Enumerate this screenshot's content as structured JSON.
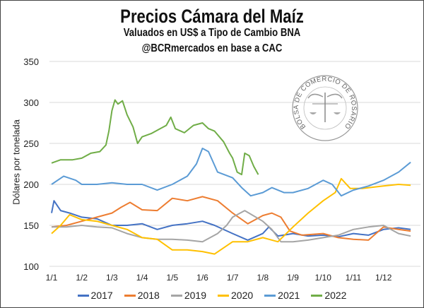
{
  "chart_data": {
    "type": "line",
    "title": "Precios Cámara del Maíz",
    "subtitle": "Valuados en US$ a Tipo de Cambio BNA",
    "source": "@BCRmercados en base a CAC",
    "logo_text": "BOLSA DE COMERCIO DE ROSARIO",
    "xlabel": "",
    "ylabel": "Dólares por tonelada",
    "ylim": [
      100,
      350
    ],
    "yticks": [
      "100",
      "150",
      "200",
      "250",
      "300",
      "350"
    ],
    "xticks": [
      "1/1",
      "1/2",
      "1/3",
      "1/4",
      "1/5",
      "1/6",
      "1/7",
      "1/8",
      "1/9",
      "1/10",
      "1/11",
      "1/12"
    ],
    "x_unit": "months since Jan 1",
    "grid": "horizontal",
    "legend_position": "bottom",
    "series": [
      {
        "name": "2017",
        "color": "#4472C4",
        "points": [
          [
            0,
            165
          ],
          [
            0.08,
            180
          ],
          [
            0.3,
            168
          ],
          [
            0.6,
            165
          ],
          [
            1,
            160
          ],
          [
            1.5,
            158
          ],
          [
            2,
            150
          ],
          [
            2.5,
            150
          ],
          [
            3,
            152
          ],
          [
            3.5,
            145
          ],
          [
            4,
            150
          ],
          [
            4.5,
            152
          ],
          [
            5,
            155
          ],
          [
            5.4,
            150
          ],
          [
            6,
            140
          ],
          [
            6.5,
            132
          ],
          [
            7,
            140
          ],
          [
            7.2,
            148
          ],
          [
            7.5,
            137
          ],
          [
            8,
            140
          ],
          [
            8.5,
            137
          ],
          [
            9,
            138
          ],
          [
            9.5,
            136
          ],
          [
            10,
            140
          ],
          [
            10.5,
            138
          ],
          [
            11,
            145
          ],
          [
            11.5,
            147
          ],
          [
            11.9,
            145
          ]
        ]
      },
      {
        "name": "2018",
        "color": "#ED7D31",
        "points": [
          [
            0,
            148
          ],
          [
            0.5,
            150
          ],
          [
            1,
            155
          ],
          [
            1.5,
            160
          ],
          [
            2,
            165
          ],
          [
            2.3,
            172
          ],
          [
            2.6,
            178
          ],
          [
            3,
            169
          ],
          [
            3.5,
            168
          ],
          [
            4,
            183
          ],
          [
            4.5,
            180
          ],
          [
            5,
            185
          ],
          [
            5.5,
            180
          ],
          [
            6,
            165
          ],
          [
            6.5,
            152
          ],
          [
            7,
            162
          ],
          [
            7.3,
            165
          ],
          [
            7.6,
            160
          ],
          [
            7.9,
            143
          ],
          [
            8.3,
            138
          ],
          [
            9,
            140
          ],
          [
            9.5,
            135
          ],
          [
            10,
            133
          ],
          [
            10.5,
            132
          ],
          [
            11,
            148
          ],
          [
            11.5,
            145
          ],
          [
            11.9,
            143
          ]
        ]
      },
      {
        "name": "2019",
        "color": "#A5A5A5",
        "points": [
          [
            0,
            148
          ],
          [
            0.5,
            148
          ],
          [
            1,
            150
          ],
          [
            1.5,
            148
          ],
          [
            2,
            147
          ],
          [
            2.5,
            140
          ],
          [
            3,
            135
          ],
          [
            3.5,
            133
          ],
          [
            4,
            133
          ],
          [
            4.5,
            132
          ],
          [
            5,
            130
          ],
          [
            5.5,
            140
          ],
          [
            5.8,
            150
          ],
          [
            6,
            160
          ],
          [
            6.4,
            168
          ],
          [
            7,
            155
          ],
          [
            7.3,
            145
          ],
          [
            7.6,
            130
          ],
          [
            8,
            130
          ],
          [
            8.5,
            132
          ],
          [
            9,
            135
          ],
          [
            9.5,
            138
          ],
          [
            10,
            145
          ],
          [
            10.5,
            148
          ],
          [
            11,
            150
          ],
          [
            11.5,
            140
          ],
          [
            11.9,
            137
          ]
        ]
      },
      {
        "name": "2020",
        "color": "#FFC000",
        "points": [
          [
            0,
            140
          ],
          [
            0.3,
            150
          ],
          [
            0.6,
            163
          ],
          [
            1,
            157
          ],
          [
            1.5,
            155
          ],
          [
            2,
            150
          ],
          [
            2.5,
            145
          ],
          [
            3,
            135
          ],
          [
            3.5,
            133
          ],
          [
            4,
            120
          ],
          [
            4.5,
            120
          ],
          [
            5,
            118
          ],
          [
            5.4,
            115
          ],
          [
            6,
            130
          ],
          [
            6.5,
            130
          ],
          [
            7,
            135
          ],
          [
            7.5,
            130
          ],
          [
            8,
            148
          ],
          [
            8.5,
            165
          ],
          [
            9,
            180
          ],
          [
            9.4,
            190
          ],
          [
            9.6,
            207
          ],
          [
            9.9,
            195
          ],
          [
            10.3,
            195
          ],
          [
            11,
            198
          ],
          [
            11.5,
            200
          ],
          [
            11.9,
            199
          ]
        ]
      },
      {
        "name": "2021",
        "color": "#5B9BD5",
        "points": [
          [
            0,
            200
          ],
          [
            0.4,
            210
          ],
          [
            0.8,
            205
          ],
          [
            1,
            200
          ],
          [
            1.5,
            200
          ],
          [
            2,
            202
          ],
          [
            2.5,
            200
          ],
          [
            3,
            200
          ],
          [
            3.5,
            193
          ],
          [
            4,
            200
          ],
          [
            4.5,
            210
          ],
          [
            4.8,
            225
          ],
          [
            5,
            244
          ],
          [
            5.2,
            240
          ],
          [
            5.5,
            215
          ],
          [
            6,
            208
          ],
          [
            6.3,
            196
          ],
          [
            6.6,
            186
          ],
          [
            7,
            190
          ],
          [
            7.3,
            196
          ],
          [
            7.7,
            190
          ],
          [
            8,
            190
          ],
          [
            8.5,
            195
          ],
          [
            9,
            205
          ],
          [
            9.3,
            200
          ],
          [
            9.6,
            186
          ],
          [
            10,
            193
          ],
          [
            10.5,
            198
          ],
          [
            11,
            205
          ],
          [
            11.5,
            215
          ],
          [
            11.9,
            227
          ]
        ]
      },
      {
        "name": "2022",
        "color": "#70AD47",
        "points": [
          [
            0,
            226
          ],
          [
            0.3,
            230
          ],
          [
            0.7,
            230
          ],
          [
            1,
            232
          ],
          [
            1.3,
            238
          ],
          [
            1.6,
            240
          ],
          [
            1.8,
            248
          ],
          [
            1.9,
            265
          ],
          [
            2,
            290
          ],
          [
            2.1,
            303
          ],
          [
            2.2,
            298
          ],
          [
            2.35,
            302
          ],
          [
            2.5,
            285
          ],
          [
            2.7,
            270
          ],
          [
            2.85,
            250
          ],
          [
            3,
            258
          ],
          [
            3.3,
            262
          ],
          [
            3.6,
            268
          ],
          [
            3.8,
            272
          ],
          [
            3.95,
            282
          ],
          [
            4.1,
            268
          ],
          [
            4.4,
            263
          ],
          [
            4.7,
            272
          ],
          [
            5,
            275
          ],
          [
            5.2,
            268
          ],
          [
            5.4,
            265
          ],
          [
            5.7,
            252
          ],
          [
            5.9,
            238
          ],
          [
            6,
            232
          ],
          [
            6.15,
            215
          ],
          [
            6.3,
            212
          ],
          [
            6.4,
            238
          ],
          [
            6.55,
            235
          ],
          [
            6.7,
            222
          ],
          [
            6.85,
            212
          ]
        ]
      }
    ]
  }
}
